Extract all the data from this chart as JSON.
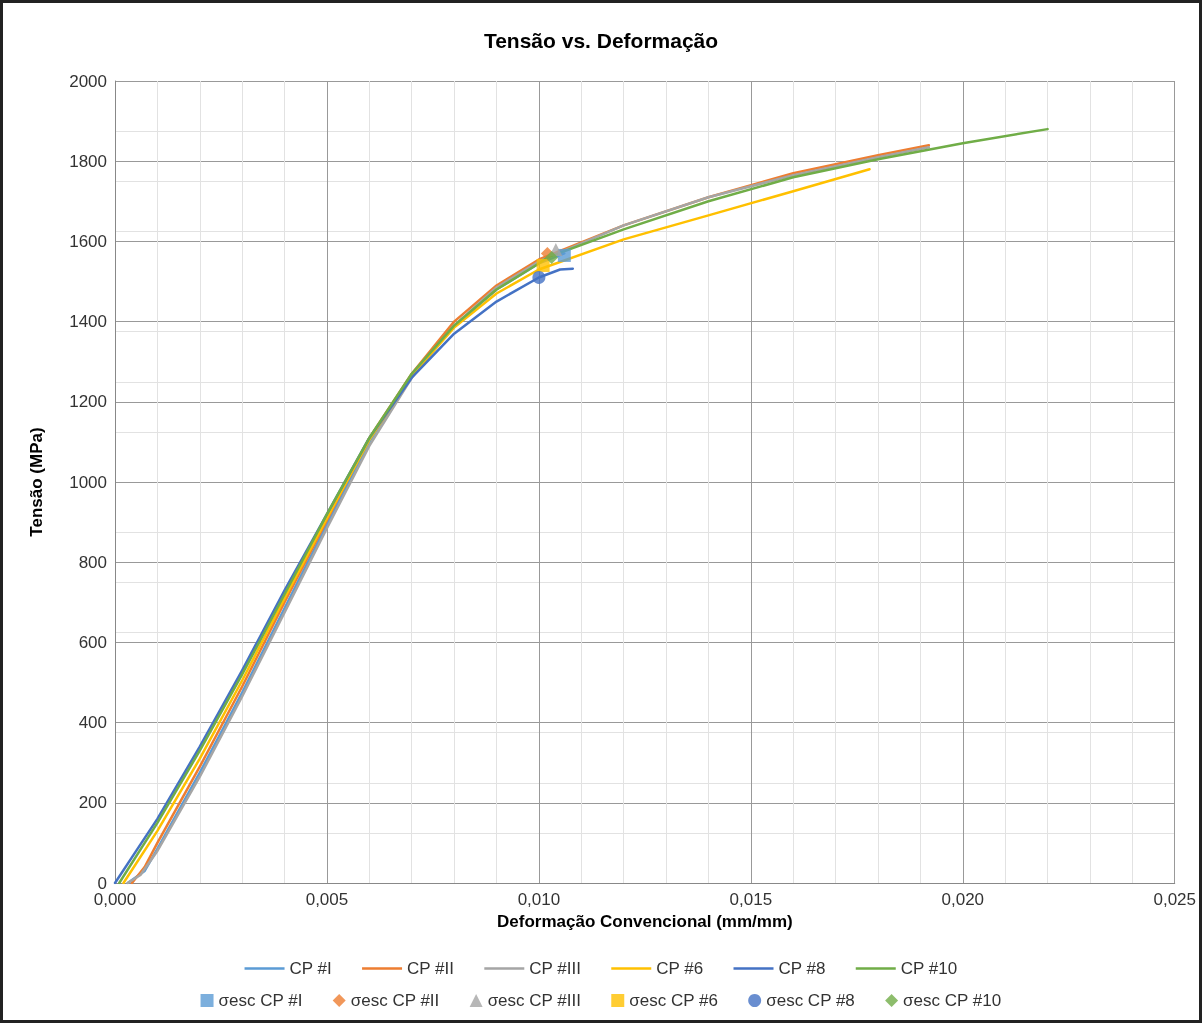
{
  "chart_data": {
    "type": "line",
    "title": "Tensão vs. Deformação",
    "xlabel": "Deformação Convencional (mm/mm)",
    "ylabel": "Tensão (MPa)",
    "xlim": [
      0,
      0.025
    ],
    "xticks": [
      {
        "value": 0,
        "label": "0,000"
      },
      {
        "value": 0.005,
        "label": "0,005"
      },
      {
        "value": 0.01,
        "label": "0,010"
      },
      {
        "value": 0.015,
        "label": "0,015"
      },
      {
        "value": 0.02,
        "label": "0,020"
      },
      {
        "value": 0.025,
        "label": "0,025"
      }
    ],
    "ylim": [
      0,
      2000
    ],
    "yticks": [
      0,
      200,
      400,
      600,
      800,
      1000,
      1200,
      1400,
      1600,
      1800,
      2000
    ],
    "grid": true,
    "legend": "bottom",
    "marker": "none",
    "series": [
      {
        "name": "CP #I",
        "color": "#5b9bd5",
        "x": [
          0.0003,
          0.0007,
          0.001,
          0.002,
          0.003,
          0.004,
          0.005,
          0.006,
          0.007,
          0.008,
          0.009,
          0.01,
          0.0106
        ],
        "values": [
          0,
          30,
          85,
          275,
          475,
          685,
          895,
          1100,
          1265,
          1390,
          1480,
          1545,
          1570
        ]
      },
      {
        "name": "CP #II",
        "color": "#ed7d31",
        "x": [
          0.0004,
          0.0007,
          0.001,
          0.002,
          0.003,
          0.004,
          0.005,
          0.006,
          0.007,
          0.008,
          0.009,
          0.01,
          0.012,
          0.014,
          0.016,
          0.018,
          0.0192
        ],
        "values": [
          0,
          40,
          100,
          290,
          490,
          700,
          905,
          1110,
          1270,
          1400,
          1490,
          1555,
          1640,
          1710,
          1770,
          1815,
          1840
        ]
      },
      {
        "name": "CP #III",
        "color": "#a5a5a5",
        "x": [
          0.0003,
          0.0006,
          0.001,
          0.002,
          0.003,
          0.004,
          0.005,
          0.006,
          0.007,
          0.008,
          0.009,
          0.01,
          0.012,
          0.014,
          0.016,
          0.018,
          0.0192
        ],
        "values": [
          0,
          20,
          80,
          265,
          465,
          675,
          885,
          1090,
          1260,
          1390,
          1485,
          1550,
          1640,
          1710,
          1765,
          1810,
          1835
        ]
      },
      {
        "name": "CP #6",
        "color": "#ffc000",
        "x": [
          0.0002,
          0.001,
          0.002,
          0.003,
          0.004,
          0.005,
          0.006,
          0.007,
          0.008,
          0.009,
          0.01,
          0.012,
          0.014,
          0.016,
          0.0178
        ],
        "values": [
          0,
          130,
          310,
          505,
          710,
          910,
          1105,
          1265,
          1385,
          1470,
          1530,
          1605,
          1665,
          1725,
          1780
        ]
      },
      {
        "name": "CP #8",
        "color": "#4472c4",
        "x": [
          0,
          0.0005,
          0.001,
          0.002,
          0.003,
          0.004,
          0.005,
          0.006,
          0.007,
          0.008,
          0.009,
          0.01,
          0.0105,
          0.0108
        ],
        "values": [
          0,
          80,
          160,
          340,
          530,
          730,
          920,
          1110,
          1260,
          1370,
          1450,
          1510,
          1530,
          1532
        ]
      },
      {
        "name": "CP #10",
        "color": "#70ad47",
        "x": [
          0.0001,
          0.001,
          0.002,
          0.003,
          0.004,
          0.005,
          0.006,
          0.007,
          0.008,
          0.009,
          0.01,
          0.0102,
          0.012,
          0.014,
          0.016,
          0.018,
          0.02,
          0.022
        ],
        "values": [
          0,
          150,
          330,
          520,
          720,
          920,
          1110,
          1270,
          1390,
          1480,
          1545,
          1560,
          1630,
          1700,
          1760,
          1805,
          1845,
          1880
        ]
      },
      {
        "name": "σesc CP #I",
        "type": "scatter",
        "marker": "square",
        "color": "#5b9bd5",
        "x": [
          0.0106
        ],
        "values": [
          1565
        ]
      },
      {
        "name": "σesc CP #II",
        "type": "scatter",
        "marker": "diamond",
        "color": "#ed7d31",
        "x": [
          0.0102
        ],
        "values": [
          1570
        ]
      },
      {
        "name": "σesc CP #III",
        "type": "scatter",
        "marker": "triangle",
        "color": "#a5a5a5",
        "x": [
          0.0104
        ],
        "values": [
          1580
        ]
      },
      {
        "name": "σesc CP #6",
        "type": "scatter",
        "marker": "square",
        "color": "#ffc000",
        "x": [
          0.0101
        ],
        "values": [
          1540
        ]
      },
      {
        "name": "σesc CP #8",
        "type": "scatter",
        "marker": "circle",
        "color": "#4472c4",
        "x": [
          0.01
        ],
        "values": [
          1510
        ]
      },
      {
        "name": "σesc CP #10",
        "type": "scatter",
        "marker": "diamond",
        "color": "#70ad47",
        "x": [
          0.0103
        ],
        "values": [
          1560
        ]
      }
    ]
  }
}
